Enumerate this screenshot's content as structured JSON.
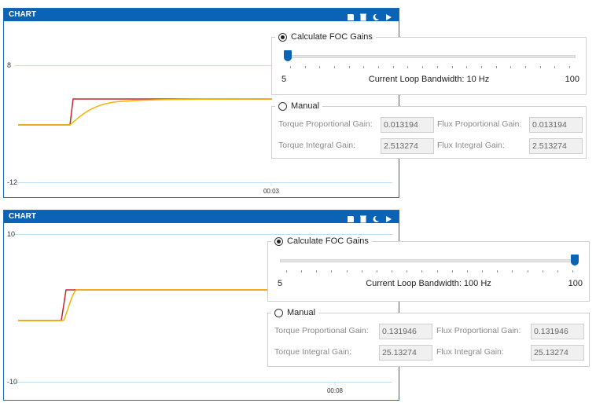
{
  "panels": [
    {
      "header": {
        "title": "CHART"
      },
      "chart": {
        "yticks": [
          8,
          -12
        ],
        "xticks": [
          "00:03"
        ]
      },
      "calculate": {
        "label": "Calculate FOC Gains",
        "min": 5,
        "max": 100,
        "bandwidth": "Current Loop Bandwidth: 10 Hz"
      },
      "manual": {
        "label": "Manual",
        "fields": [
          {
            "label": "Torque Proportional Gain:",
            "value": 0.013194
          },
          {
            "label": "Flux Proportional Gain:",
            "value": 0.013194
          },
          {
            "label": "Torque Integral Gain:",
            "value": 2.513274
          },
          {
            "label": "Flux Integral Gain:",
            "value": 2.513274
          }
        ]
      }
    },
    {
      "header": {
        "title": "CHART"
      },
      "chart": {
        "yticks": [
          10,
          -10
        ],
        "xticks": [
          "00:08"
        ]
      },
      "calculate": {
        "label": "Calculate FOC Gains",
        "min": 5,
        "max": 100,
        "bandwidth": "Current Loop Bandwidth: 100 Hz"
      },
      "manual": {
        "label": "Manual",
        "fields": [
          {
            "label": "Torque Proportional Gain:",
            "value": 0.131946
          },
          {
            "label": "Flux Proportional Gain:",
            "value": 0.131946
          },
          {
            "label": "Torque Integral Gain:",
            "value": 25.13274
          },
          {
            "label": "Flux Integral Gain:",
            "value": 25.13274
          }
        ]
      }
    }
  ]
}
